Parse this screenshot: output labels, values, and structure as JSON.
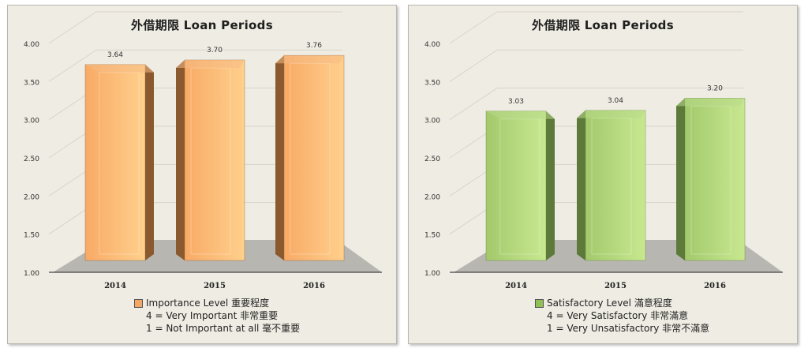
{
  "charts": [
    {
      "title": "外借期限  Loan Periods",
      "legend": {
        "series_label": "Importance Level 重要程度",
        "scale_high": "4 = Very Important 非常重要",
        "scale_low": "1 = Not  Important at all 毫不重要",
        "color": "#f5a564"
      },
      "colors": {
        "front": "#f8aa66",
        "side": "#8a5a2e",
        "top": "#f5bb85",
        "grad_light": "#ffd08c"
      }
    },
    {
      "title": "外借期限  Loan Periods",
      "legend": {
        "series_label": "Satisfactory Level 滿意程度",
        "scale_high": "4 = Very Satisfactory 非常滿意",
        "scale_low": "1 = Very Unsatisfactory 非常不滿意",
        "color": "#8fbf55"
      },
      "colors": {
        "front": "#a3c96c",
        "side": "#5d7a3a",
        "top": "#b8d98a",
        "grad_light": "#c8e890"
      }
    }
  ],
  "chart_data": [
    {
      "type": "bar",
      "title": "外借期限  Loan Periods",
      "categories": [
        "2014",
        "2015",
        "2016"
      ],
      "series": [
        {
          "name": "Importance Level 重要程度",
          "values": [
            3.64,
            3.7,
            3.76
          ]
        }
      ],
      "value_labels": [
        "3.64",
        "3.70",
        "3.76"
      ],
      "y_ticks": [
        "1.00",
        "1.50",
        "2.00",
        "2.50",
        "3.00",
        "3.50",
        "4.00"
      ],
      "ylim": [
        1,
        4
      ],
      "grid": true,
      "legend_position": "bottom",
      "three_d": true
    },
    {
      "type": "bar",
      "title": "外借期限  Loan Periods",
      "categories": [
        "2014",
        "2015",
        "2016"
      ],
      "series": [
        {
          "name": "Satisfactory Level 滿意程度",
          "values": [
            3.03,
            3.04,
            3.2
          ]
        }
      ],
      "value_labels": [
        "3.03",
        "3.04",
        "3.20"
      ],
      "y_ticks": [
        "1.00",
        "1.50",
        "2.00",
        "2.50",
        "3.00",
        "3.50",
        "4.00"
      ],
      "ylim": [
        1,
        4
      ],
      "grid": true,
      "legend_position": "bottom",
      "three_d": true
    }
  ]
}
